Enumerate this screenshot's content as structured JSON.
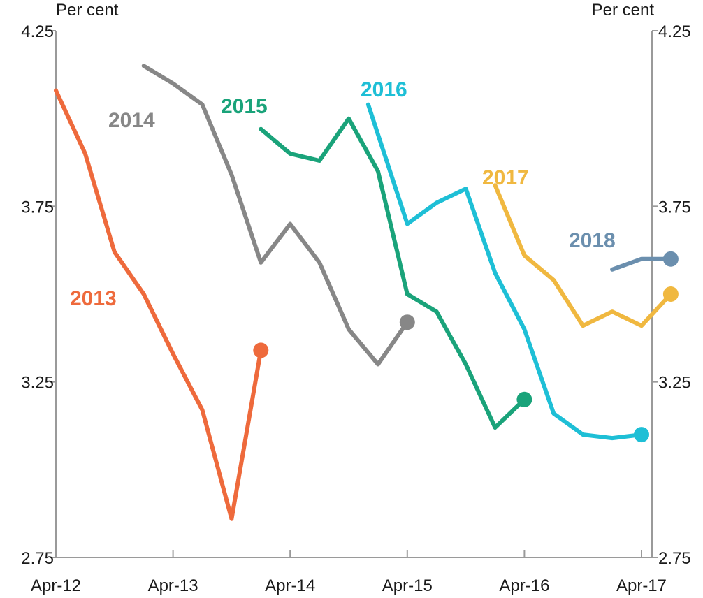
{
  "chart_data": {
    "type": "line",
    "title": "",
    "xlabel": "",
    "ylabel_left": "Per cent",
    "ylabel_right": "Per cent",
    "ylim": [
      2.75,
      4.25
    ],
    "yticks": [
      "4.25",
      "3.75",
      "3.25",
      "2.75"
    ],
    "xticks": [
      "Apr-12",
      "Apr-13",
      "Apr-14",
      "Apr-15",
      "Apr-16",
      "Apr-17"
    ],
    "grid": false,
    "series": [
      {
        "name": "2013",
        "color": "#EE6A3C",
        "x": [
          "2012-04",
          "2012-07",
          "2012-10",
          "2013-01",
          "2013-04",
          "2013-07",
          "2013-10",
          "2014-01"
        ],
        "y": [
          4.08,
          3.9,
          3.62,
          3.5,
          3.33,
          3.17,
          2.86,
          3.34
        ]
      },
      {
        "name": "2014",
        "color": "#878787",
        "x": [
          "2013-01",
          "2013-04",
          "2013-07",
          "2013-10",
          "2014-01",
          "2014-04",
          "2014-07",
          "2014-10",
          "2015-01",
          "2015-04"
        ],
        "y": [
          4.15,
          4.1,
          4.04,
          3.84,
          3.59,
          3.7,
          3.59,
          3.4,
          3.3,
          3.42
        ]
      },
      {
        "name": "2015",
        "color": "#1AA37A",
        "x": [
          "2014-01",
          "2014-04",
          "2014-07",
          "2014-10",
          "2015-01",
          "2015-04",
          "2015-07",
          "2015-10",
          "2016-01",
          "2016-04"
        ],
        "y": [
          3.97,
          3.9,
          3.88,
          4.0,
          3.85,
          3.5,
          3.45,
          3.3,
          3.12,
          3.2
        ]
      },
      {
        "name": "2016",
        "color": "#1EBFD6",
        "x": [
          "2014-12",
          "2015-04",
          "2015-07",
          "2015-10",
          "2016-01",
          "2016-04",
          "2016-07",
          "2016-10",
          "2017-01",
          "2017-04"
        ],
        "y": [
          4.04,
          3.7,
          3.76,
          3.8,
          3.56,
          3.4,
          3.16,
          3.1,
          3.09,
          3.1
        ]
      },
      {
        "name": "2017",
        "color": "#F0B840",
        "x": [
          "2016-01",
          "2016-04",
          "2016-07",
          "2016-10",
          "2017-01",
          "2017-04",
          "2017-07"
        ],
        "y": [
          3.81,
          3.61,
          3.54,
          3.41,
          3.45,
          3.41,
          3.5
        ]
      },
      {
        "name": "2018",
        "color": "#6B8FAE",
        "x": [
          "2017-01",
          "2017-04",
          "2017-07"
        ],
        "y": [
          3.57,
          3.6,
          3.6
        ]
      }
    ]
  }
}
